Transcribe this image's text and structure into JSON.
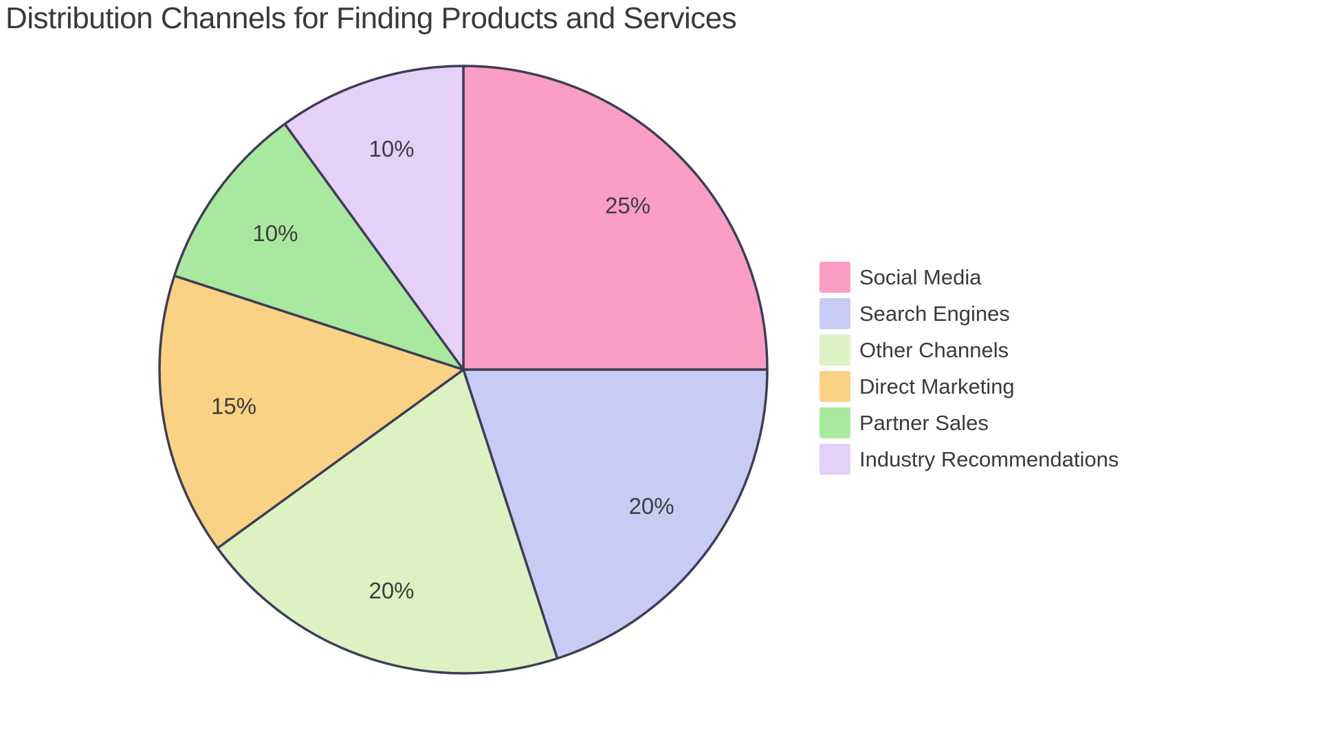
{
  "chart_data": {
    "type": "pie",
    "title": "Distribution Channels for Finding Products and Services",
    "slices": [
      {
        "label": "Social Media",
        "value": 25,
        "percent_label": "25%",
        "color": "#FA9EC6"
      },
      {
        "label": "Search Engines",
        "value": 20,
        "percent_label": "20%",
        "color": "#C8CBF3"
      },
      {
        "label": "Other Channels",
        "value": 20,
        "percent_label": "20%",
        "color": "#DCF2C2"
      },
      {
        "label": "Direct Marketing",
        "value": 15,
        "percent_label": "15%",
        "color": "#FAD285"
      },
      {
        "label": "Partner Sales",
        "value": 10,
        "percent_label": "10%",
        "color": "#A9E99F"
      },
      {
        "label": "Industry Recommendations",
        "value": 10,
        "percent_label": "10%",
        "color": "#E5D0F7"
      }
    ],
    "start_angle_deg": 0,
    "direction": "clockwise",
    "legend_position": "right",
    "slice_border_color": "#3E3D56",
    "label_color": "#3D3D3D",
    "title_color": "#3A3A3A",
    "background": "#FFFFFF"
  }
}
